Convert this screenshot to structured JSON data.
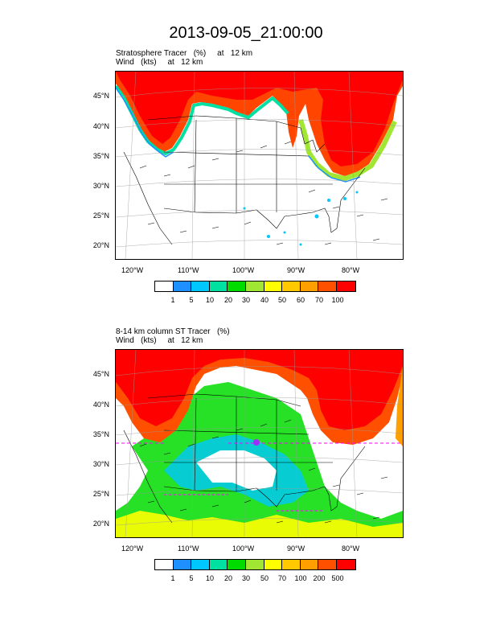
{
  "title": "2013-09-05_21:00:00",
  "panel1": {
    "line1": "Stratosphere Tracer   (%)     at   12 km",
    "line2": "Wind   (kts)     at   12 km",
    "colorbar_labels": [
      "1",
      "5",
      "10",
      "20",
      "30",
      "40",
      "50",
      "60",
      "70",
      "100"
    ]
  },
  "panel2": {
    "line1": "8-14 km column ST Tracer   (%)",
    "line2": "Wind   (kts)     at   12 km",
    "colorbar_labels": [
      "1",
      "5",
      "10",
      "20",
      "30",
      "50",
      "70",
      "100",
      "200",
      "500"
    ]
  },
  "lon_labels": [
    "120°W",
    "110°W",
    "100°W",
    "90°W",
    "80°W"
  ],
  "lat_labels": [
    "45°N",
    "40°N",
    "35°N",
    "30°N",
    "25°N",
    "20°N"
  ],
  "colorbar_colors": [
    "#ffffff",
    "#1e90ff",
    "#00c8ff",
    "#00e0a0",
    "#00dc00",
    "#a0e632",
    "#ffff00",
    "#ffc800",
    "#ffa000",
    "#ff5000",
    "#ff0000"
  ]
}
